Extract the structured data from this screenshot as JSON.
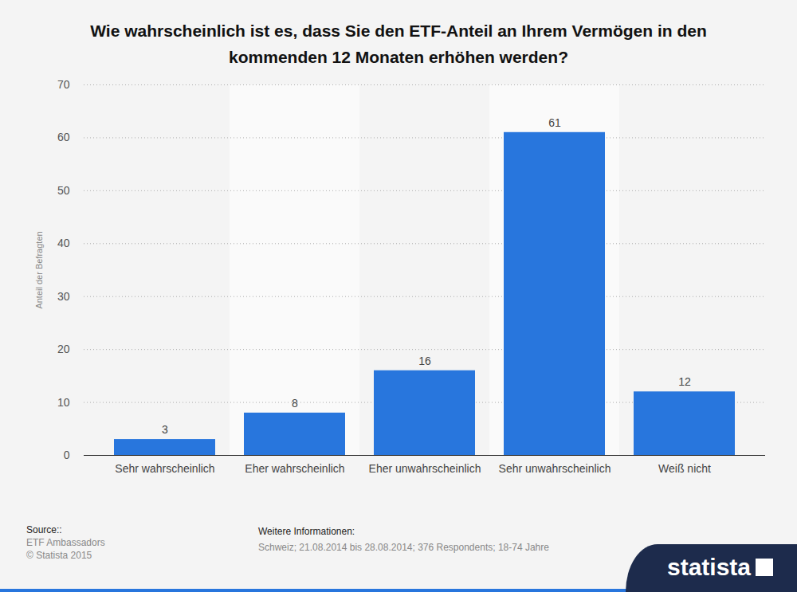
{
  "chart_data": {
    "type": "bar",
    "title": "Wie wahrscheinlich ist es, dass Sie den ETF-Anteil an Ihrem Vermögen in den kommenden 12 Monaten erhöhen werden?",
    "y_label": "Anteil der Befragten",
    "categories": [
      "Sehr wahrscheinlich",
      "Eher wahrscheinlich",
      "Eher unwahrscheinlich",
      "Sehr unwahrscheinlich",
      "Weiß nicht"
    ],
    "values": [
      3,
      8,
      16,
      61,
      12
    ],
    "color": "#2876dd",
    "ylim": [
      0,
      70
    ],
    "yticks": [
      0,
      10,
      20,
      30,
      40,
      50,
      60,
      70
    ],
    "grid": true,
    "data_labels": true
  },
  "footer": {
    "source_heading": "Source::",
    "source": "ETF Ambassadors",
    "copyright": "© Statista 2015",
    "info_heading": "Weitere Informationen:",
    "info": "Schweiz; 21.08.2014 bis 28.08.2014; 376 Respondents; 18-74 Jahre",
    "logo": "statista"
  }
}
